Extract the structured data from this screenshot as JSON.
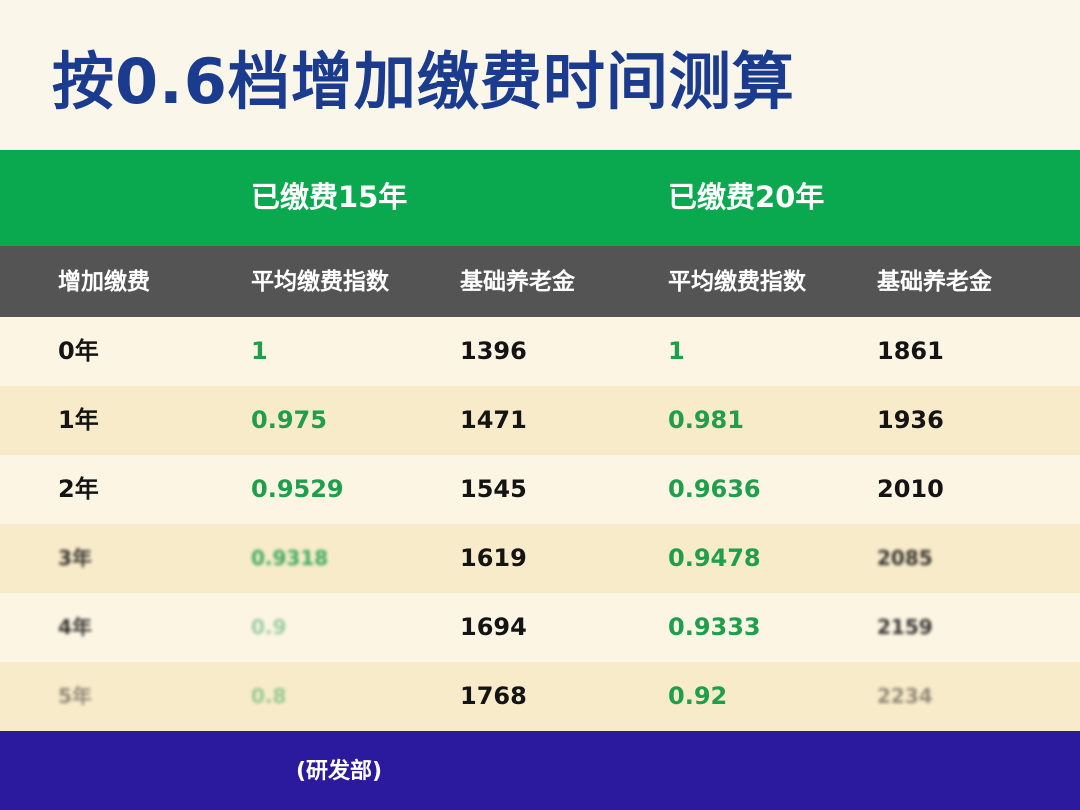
{
  "title": "按0.6档增加缴费时间测算",
  "group_headers": [
    "已缴费15年",
    "已缴费20年"
  ],
  "column_headers": [
    "增加缴费",
    "平均缴费指数",
    "基础养老金",
    "平均缴费指数",
    "基础养老金"
  ],
  "rows": [
    {
      "years": "0年",
      "index15": "1",
      "pension15": "1396",
      "index20": "1",
      "pension20": "1861"
    },
    {
      "years": "1年",
      "index15": "0.975",
      "pension15": "1471",
      "index20": "0.981",
      "pension20": "1936"
    },
    {
      "years": "2年",
      "index15": "0.9529",
      "pension15": "1545",
      "index20": "0.9636",
      "pension20": "2010"
    },
    {
      "years": "3年",
      "index15": "0.9318",
      "pension15": "1619",
      "index20": "0.9478",
      "pension20": "2085"
    },
    {
      "years": "4年",
      "index15": "0.9",
      "pension15": "1694",
      "index20": "0.9333",
      "pension20": "2159"
    },
    {
      "years": "5年",
      "index15": "0.8",
      "pension15": "1768",
      "index20": "0.92",
      "pension20": "2234"
    }
  ],
  "footer": "(研发部)",
  "colors": {
    "title": "#1b3b8f",
    "group_header_bg": "#0aa84f",
    "column_header_bg": "#545454",
    "row_light": "#fcf5e4",
    "row_dark": "#f8ebca",
    "green_text": "#1f9e4c",
    "footer_bg": "#2b1a9e"
  }
}
